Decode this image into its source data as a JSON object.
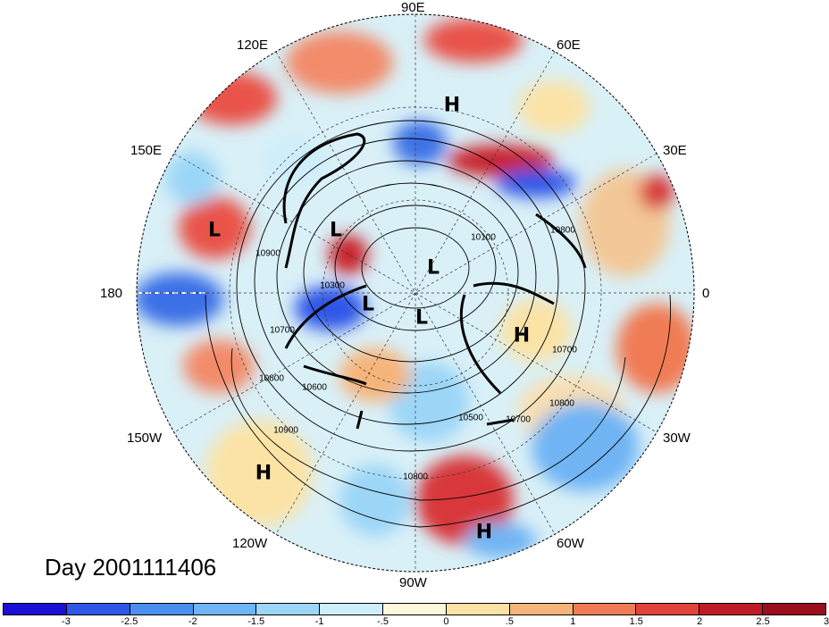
{
  "title": "Day 2001111406",
  "longitude_labels": {
    "lon_90e": "90E",
    "lon_60e": "60E",
    "lon_30e": "30E",
    "lon_0": "0",
    "lon_30w": "30W",
    "lon_60w": "60W",
    "lon_90w": "90W",
    "lon_120w": "120W",
    "lon_150w": "150W",
    "lon_180": "180",
    "lon_150e": "150E",
    "lon_120e": "120E"
  },
  "pressure_centers": {
    "h1": "H",
    "h2": "H",
    "h3": "H",
    "h4": "H",
    "l1": "L",
    "l2": "L",
    "l3": "L",
    "l4": "L",
    "l5": "L"
  },
  "contour_labels": {
    "c1": "10100",
    "c2": "10800",
    "c3": "10700",
    "c4": "10900",
    "c5": "10300",
    "c6": "10600",
    "c7": "10800",
    "c8": "10900",
    "c9": "10500",
    "c10": "10700",
    "c11": "10800",
    "c12": "10800",
    "c13": "10700"
  },
  "colorbar": {
    "colors": [
      "#1a0fd4",
      "#2e57e8",
      "#4a8ff0",
      "#6fb4f4",
      "#9bd6f7",
      "#cdeefa",
      "#fdf8dc",
      "#fbe3a6",
      "#f6b47a",
      "#f07c55",
      "#e0443c",
      "#c01a26",
      "#9c0d1d"
    ],
    "ticks": [
      "-3",
      "-2.5",
      "-2",
      "-1.5",
      "-1",
      "-.5",
      "0",
      ".5",
      "1",
      "1.5",
      "2",
      "2.5",
      "3"
    ]
  },
  "chart_data": {
    "type": "heatmap",
    "projection": "polar stereographic (north pole)",
    "title": "Day 2001111406",
    "colorbar_range": [
      -3,
      3
    ],
    "colorbar_interval": 0.5,
    "contour_levels_labeled": [
      10100,
      10300,
      10500,
      10600,
      10700,
      10800,
      10900
    ]
  }
}
